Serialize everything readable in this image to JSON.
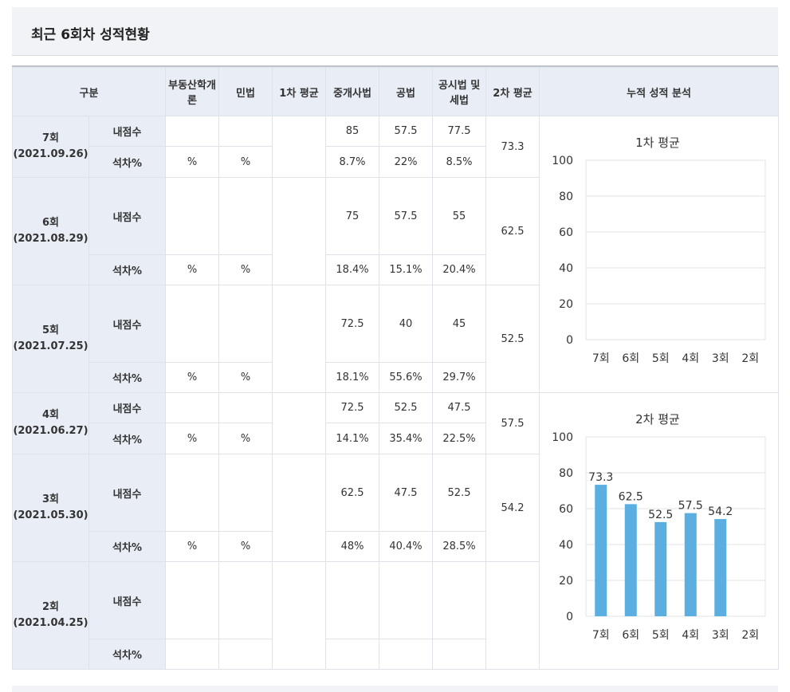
{
  "page_title": "최근 6회차 성적현황",
  "headers": [
    "구분",
    "부동산학개론",
    "민법",
    "1차 평균",
    "중개사법",
    "공법",
    "공시법 및 세법",
    "2차 평균",
    "누적 성적 분석"
  ],
  "row_labels": {
    "score": "내점수",
    "gap": "석차%"
  },
  "rounds": [
    {
      "name": "7회",
      "date": "(2021.09.26)",
      "score": [
        "",
        "",
        "85",
        "57.5",
        "77.5"
      ],
      "gap": [
        "%",
        "%",
        "8.7%",
        "22%",
        "8.5%"
      ],
      "avg2": "73.3"
    },
    {
      "name": "6회",
      "date": "(2021.08.29)",
      "score": [
        "",
        "",
        "75",
        "57.5",
        "55"
      ],
      "gap": [
        "%",
        "%",
        "18.4%",
        "15.1%",
        "20.4%"
      ],
      "avg2": "62.5"
    },
    {
      "name": "5회",
      "date": "(2021.07.25)",
      "score": [
        "",
        "",
        "72.5",
        "40",
        "45"
      ],
      "gap": [
        "%",
        "%",
        "18.1%",
        "55.6%",
        "29.7%"
      ],
      "avg2": "52.5"
    },
    {
      "name": "4회",
      "date": "(2021.06.27)",
      "score": [
        "",
        "",
        "72.5",
        "52.5",
        "47.5"
      ],
      "gap": [
        "%",
        "%",
        "14.1%",
        "35.4%",
        "22.5%"
      ],
      "avg2": "57.5"
    },
    {
      "name": "3회",
      "date": "(2021.05.30)",
      "score": [
        "",
        "",
        "62.5",
        "47.5",
        "52.5"
      ],
      "gap": [
        "%",
        "%",
        "48%",
        "40.4%",
        "28.5%"
      ],
      "avg2": "54.2"
    },
    {
      "name": "2회",
      "date": "(2021.04.25)",
      "score": [
        "",
        "",
        "",
        "",
        ""
      ],
      "gap": [
        "",
        "",
        "",
        "",
        ""
      ],
      "avg2": ""
    }
  ],
  "colors": {
    "bar": "#5aaee0",
    "header_bg": "#e9eef6",
    "title_bg": "#f1f3f6",
    "grid": "#e3e3e3"
  },
  "chart_data": [
    {
      "type": "bar",
      "title": "1차 평균",
      "categories": [
        "7회",
        "6회",
        "5회",
        "4회",
        "3회",
        "2회"
      ],
      "values": [
        null,
        null,
        null,
        null,
        null,
        null
      ],
      "ylim": [
        0,
        100
      ],
      "yticks": [
        0,
        20,
        40,
        60,
        80,
        100
      ],
      "grid": true
    },
    {
      "type": "bar",
      "title": "2차 평균",
      "categories": [
        "7회",
        "6회",
        "5회",
        "4회",
        "3회",
        "2회"
      ],
      "values": [
        73.3,
        62.5,
        52.5,
        57.5,
        54.2,
        null
      ],
      "ylim": [
        0,
        100
      ],
      "yticks": [
        0,
        20,
        40,
        60,
        80,
        100
      ],
      "grid": true,
      "data_labels": true
    }
  ]
}
